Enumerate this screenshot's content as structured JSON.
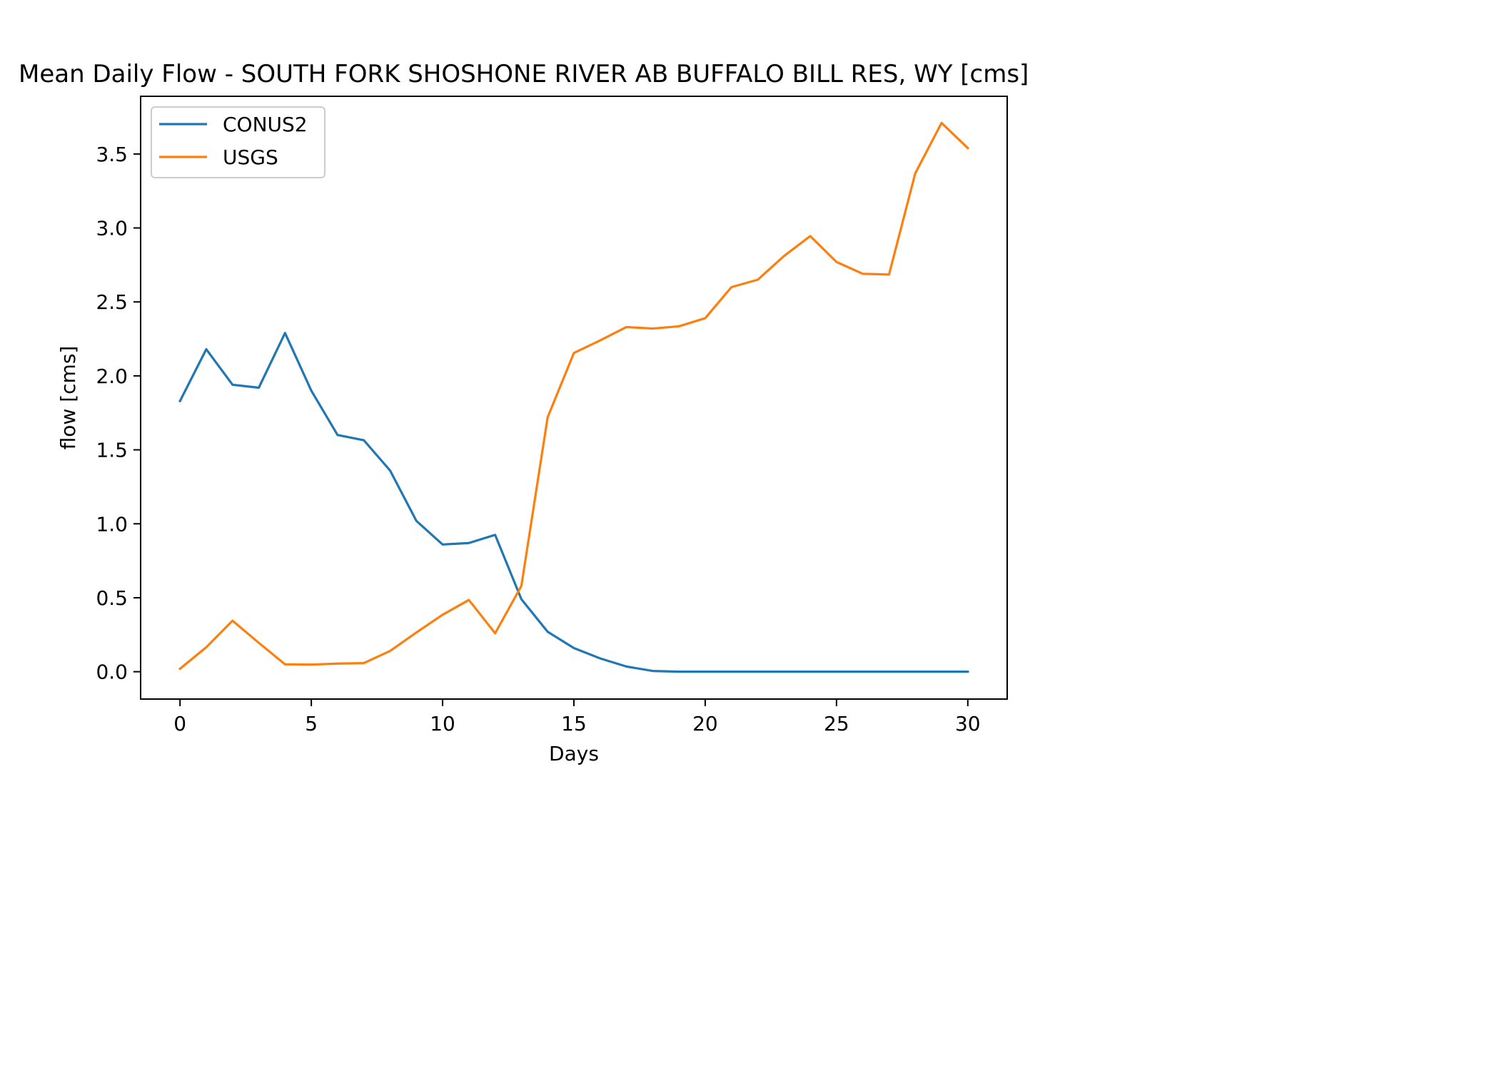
{
  "chart_data": {
    "type": "line",
    "title": "Mean Daily Flow - SOUTH FORK SHOSHONE RIVER AB BUFFALO BILL RES, WY [cms]",
    "xlabel": "Days",
    "ylabel": "flow [cms]",
    "xlim": [
      -1.5,
      31.5
    ],
    "ylim": [
      -0.185,
      3.89
    ],
    "xticks": [
      0,
      5,
      10,
      15,
      20,
      25,
      30
    ],
    "yticks": [
      0.0,
      0.5,
      1.0,
      1.5,
      2.0,
      2.5,
      3.0,
      3.5
    ],
    "ytick_labels": [
      "0.0",
      "0.5",
      "1.0",
      "1.5",
      "2.0",
      "2.5",
      "3.0",
      "3.5"
    ],
    "grid": false,
    "legend_position": "top-left",
    "x": [
      0,
      1,
      2,
      3,
      4,
      5,
      6,
      7,
      8,
      9,
      10,
      11,
      12,
      13,
      14,
      15,
      16,
      17,
      18,
      19,
      20,
      21,
      22,
      23,
      24,
      25,
      26,
      27,
      28,
      29,
      30
    ],
    "series": [
      {
        "name": "CONUS2",
        "color": "#1f77b4",
        "values": [
          1.83,
          2.18,
          1.94,
          1.92,
          2.29,
          1.9,
          1.6,
          1.565,
          1.36,
          1.02,
          0.86,
          0.87,
          0.925,
          0.49,
          0.27,
          0.16,
          0.09,
          0.035,
          0.005,
          0.0,
          0.0,
          0.0,
          0.0,
          0.0,
          0.0,
          0.0,
          0.0,
          0.0,
          0.0,
          0.0,
          0.0
        ]
      },
      {
        "name": "USGS",
        "color": "#ff7f0e",
        "values": [
          0.02,
          0.165,
          0.345,
          0.195,
          0.05,
          0.048,
          0.055,
          0.058,
          0.14,
          0.265,
          0.385,
          0.485,
          0.26,
          0.58,
          1.72,
          2.155,
          2.24,
          2.33,
          2.32,
          2.335,
          2.39,
          2.6,
          2.65,
          2.81,
          2.945,
          2.77,
          2.69,
          2.685,
          3.37,
          3.71,
          3.54
        ]
      }
    ]
  }
}
